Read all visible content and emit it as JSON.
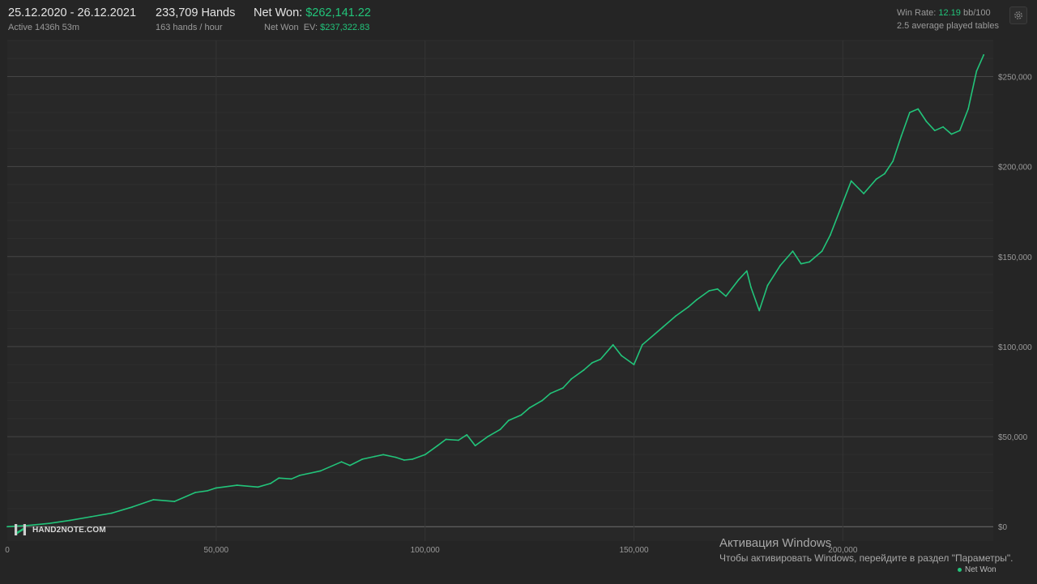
{
  "header": {
    "date_range": "25.12.2020 - 26.12.2021",
    "active": "Active 1436h 53m",
    "hands": "233,709 Hands",
    "hands_per_hour": "163 hands / hour",
    "net_won_label": "Net Won:",
    "net_won_value": "$262,141.22",
    "net_won_ev_label": "Net Won  EV:",
    "net_won_ev_value": "$237,322.83",
    "win_rate_label": "Win Rate:",
    "win_rate_value": "12.19",
    "win_rate_unit": "bb/100",
    "avg_tables": "2.5 average played tables"
  },
  "icons": {
    "settings": "gear-icon",
    "logo": "hand2note-logo-icon"
  },
  "logo_text": "HAND2NOTE.COM",
  "activation": {
    "title": "Активация Windows",
    "subtitle": "Чтобы активировать Windows, перейдите в раздел \"Параметры\"."
  },
  "colors": {
    "accent": "#22c47a",
    "background": "#252525",
    "grid": "#3d3d3d"
  },
  "chart_data": {
    "type": "line",
    "title": "",
    "xlabel": "",
    "ylabel": "",
    "xlim": [
      0,
      236000
    ],
    "ylim": [
      -8000,
      270000
    ],
    "x_ticks": [
      0,
      50000,
      100000,
      150000,
      200000
    ],
    "x_tick_labels": [
      "0",
      "50,000",
      "100,000",
      "150,000",
      "200,000"
    ],
    "y_ticks": [
      0,
      50000,
      100000,
      150000,
      200000,
      250000
    ],
    "y_tick_labels": [
      "$0",
      "$50,000",
      "$100,000",
      "$150,000",
      "$200,000",
      "$250,000"
    ],
    "grid": true,
    "legend": "bottom-right",
    "series": [
      {
        "name": "Net Won",
        "color": "#22c47a",
        "x": [
          0,
          5000,
          10000,
          15000,
          20000,
          25000,
          30000,
          35000,
          40000,
          45000,
          48000,
          50000,
          55000,
          60000,
          63000,
          65000,
          68000,
          70000,
          75000,
          80000,
          82000,
          85000,
          88000,
          90000,
          93000,
          95000,
          97000,
          100000,
          103000,
          105000,
          108000,
          110000,
          112000,
          115000,
          118000,
          120000,
          123000,
          125000,
          128000,
          130000,
          133000,
          135000,
          138000,
          140000,
          142000,
          145000,
          147000,
          150000,
          152000,
          155000,
          157000,
          160000,
          163000,
          165000,
          168000,
          170000,
          172000,
          175000,
          177000,
          178000,
          180000,
          182000,
          185000,
          188000,
          190000,
          192000,
          195000,
          197000,
          200000,
          202000,
          205000,
          208000,
          210000,
          212000,
          214000,
          216000,
          218000,
          220000,
          222000,
          224000,
          226000,
          228000,
          230000,
          232000,
          233709
        ],
        "values": [
          0,
          700,
          1800,
          3500,
          5500,
          7500,
          11000,
          15000,
          14000,
          19000,
          20000,
          21500,
          23000,
          22000,
          24000,
          27000,
          26500,
          28500,
          31000,
          36000,
          34000,
          37500,
          39000,
          40000,
          38500,
          37000,
          37500,
          40000,
          45000,
          48500,
          48000,
          51000,
          45000,
          50000,
          54000,
          59000,
          62000,
          66000,
          70000,
          74000,
          77000,
          82000,
          87000,
          91000,
          93000,
          101000,
          95000,
          90000,
          101000,
          107000,
          111000,
          117000,
          122000,
          126000,
          131000,
          132000,
          128000,
          137000,
          142000,
          133000,
          120000,
          134000,
          145000,
          153000,
          146000,
          147000,
          153000,
          162000,
          180000,
          192000,
          185000,
          193000,
          196000,
          203000,
          217000,
          230000,
          232000,
          225000,
          220000,
          222000,
          218000,
          220000,
          232000,
          253000,
          262000
        ]
      }
    ]
  }
}
